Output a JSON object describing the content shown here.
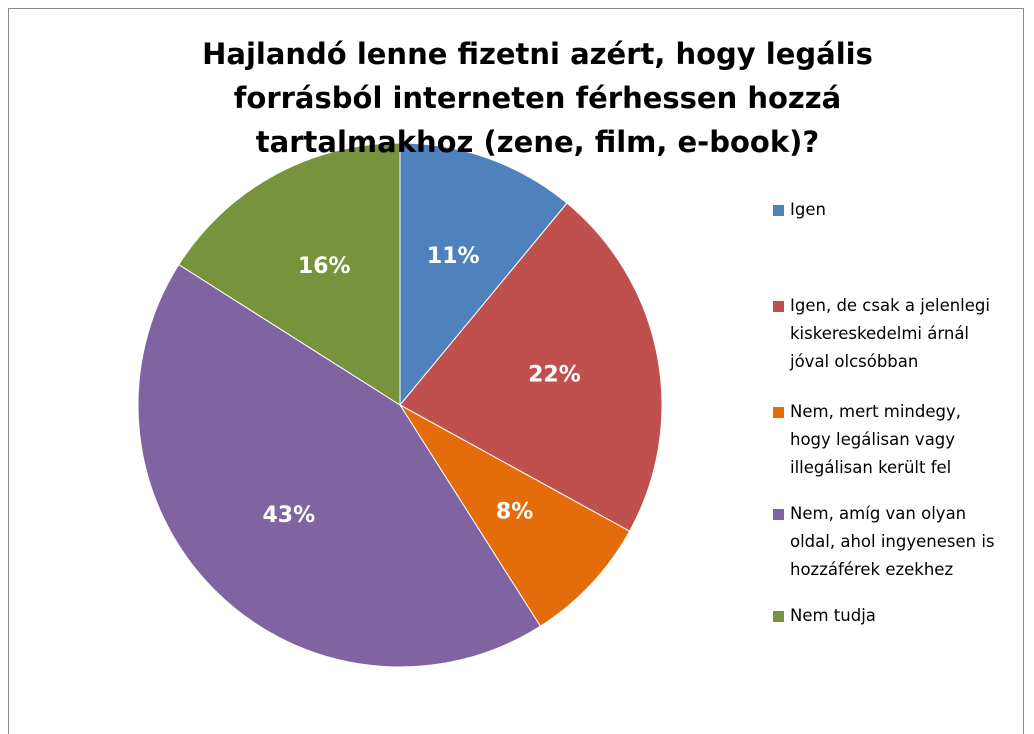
{
  "chart_data": {
    "type": "pie",
    "title": "Hajlandó lenne fizetni azért, hogy legális forrásból interneten férhessen hozzá tartalmakhoz (zene, film, e-book)?",
    "categories": [
      "Igen",
      "Igen, de csak a jelenlegi kiskereskedelmi árnál jóval olcsóbban",
      "Nem, mert mindegy, hogy legálisan vagy illegálisan került fel",
      "Nem, amíg van olyan oldal, ahol ingyenesen is hozzáférek ezekhez",
      "Nem tudja"
    ],
    "values": [
      11,
      22,
      8,
      43,
      16
    ],
    "value_labels": [
      "11%",
      "22%",
      "8%",
      "43%",
      "16%"
    ],
    "colors": [
      "#4f81bd",
      "#c0504d",
      "#e46c0a",
      "#8064a2",
      "#77933c"
    ],
    "legend": "right"
  }
}
